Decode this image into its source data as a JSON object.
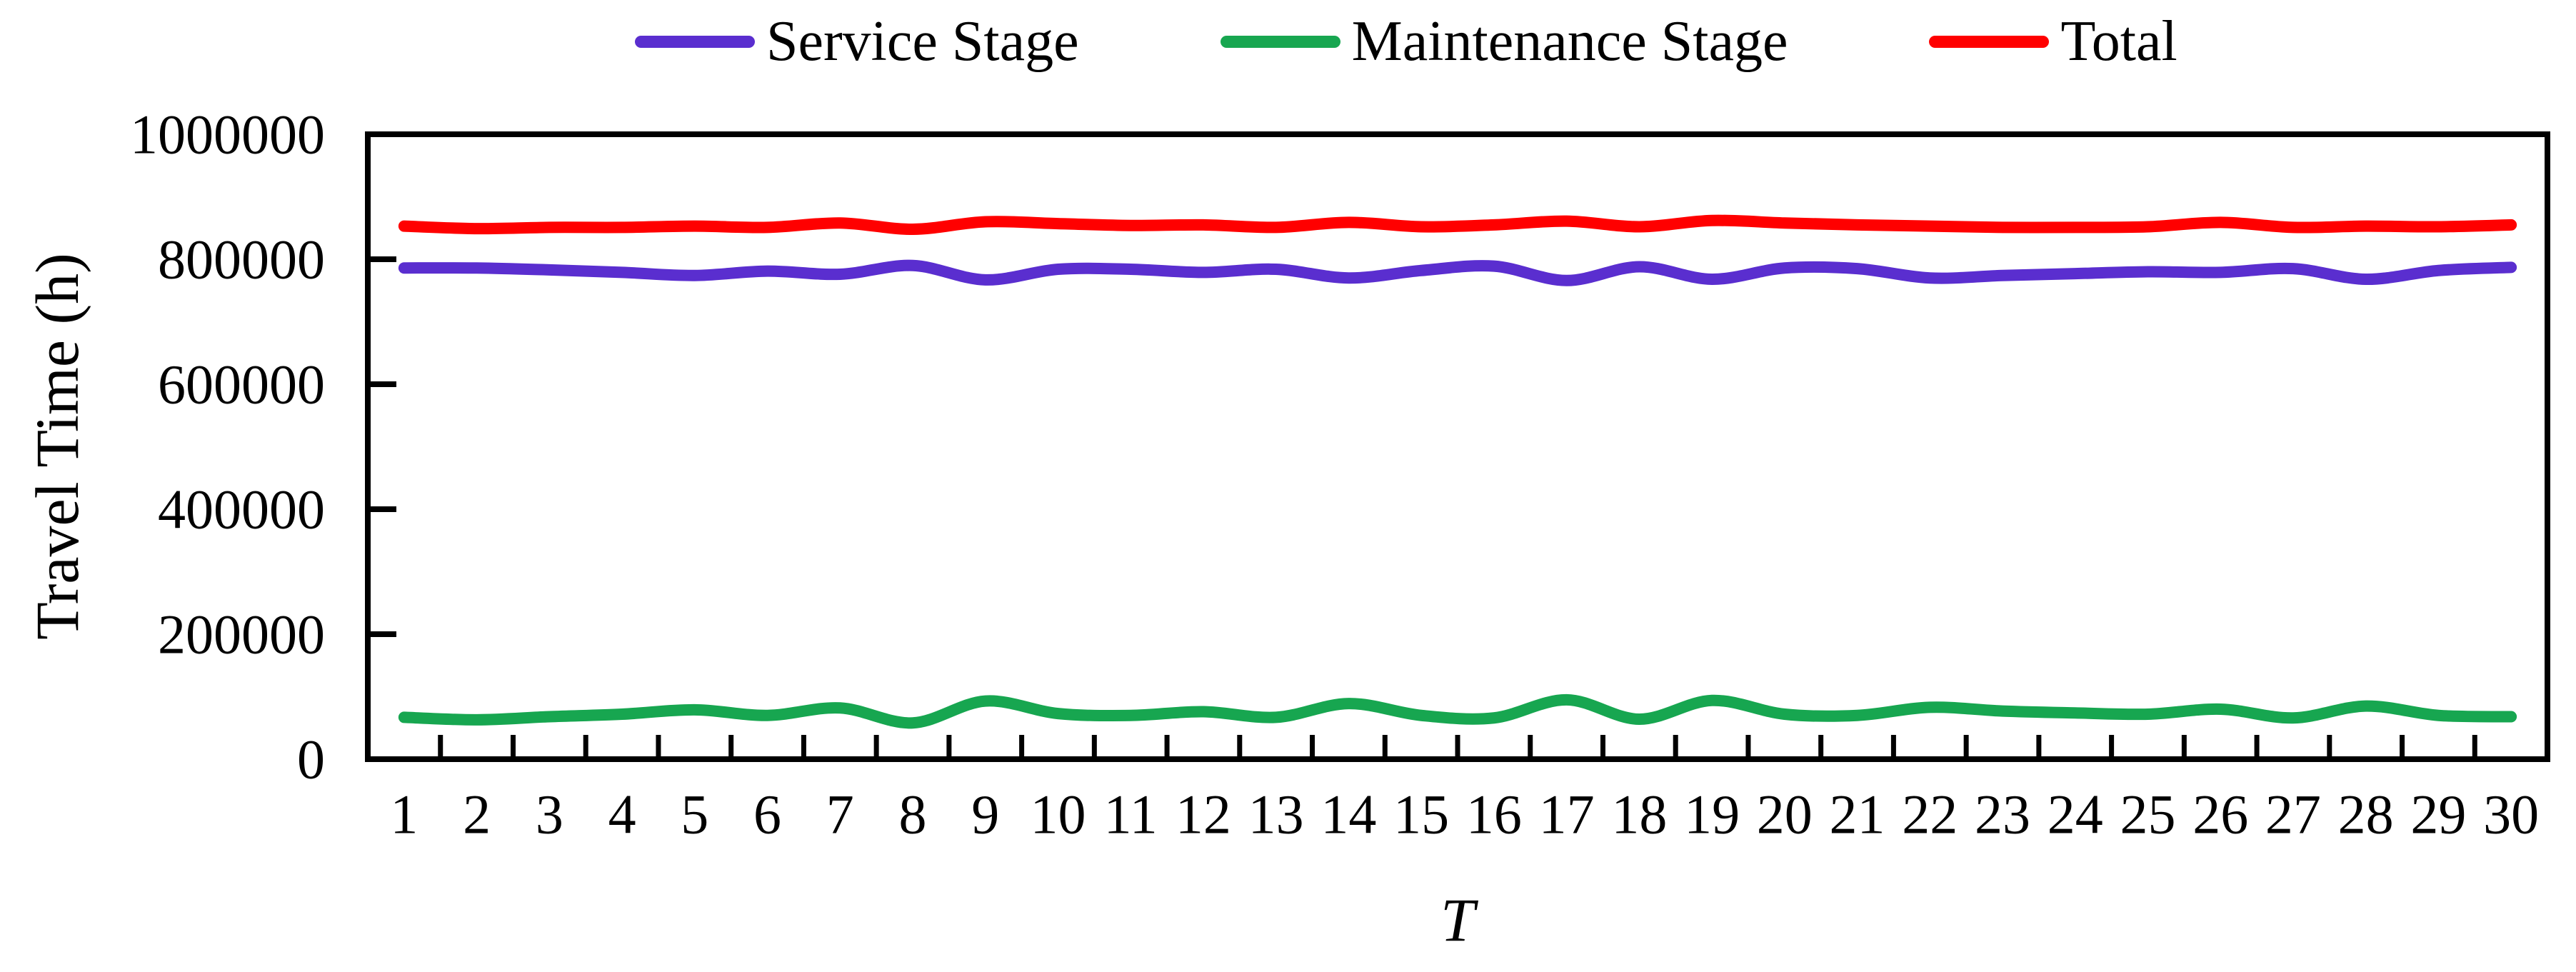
{
  "figure": {
    "background": "#ffffff",
    "text_color": "#000000",
    "y_axis": {
      "title": "Travel Time (h)",
      "tick_labels": [
        "0",
        "200000",
        "400000",
        "600000",
        "800000",
        "1000000"
      ]
    },
    "x_axis": {
      "title": "T",
      "tick_labels": [
        "1",
        "2",
        "3",
        "4",
        "5",
        "6",
        "7",
        "8",
        "9",
        "10",
        "11",
        "12",
        "13",
        "14",
        "15",
        "16",
        "17",
        "18",
        "19",
        "20",
        "21",
        "22",
        "23",
        "24",
        "25",
        "26",
        "27",
        "28",
        "29",
        "30"
      ]
    }
  },
  "legend": {
    "items": [
      {
        "label": "Service Stage",
        "color": "#5A2ECF"
      },
      {
        "label": "Maintenance Stage",
        "color": "#17A650"
      },
      {
        "label": "Total",
        "color": "#FF0000"
      }
    ]
  },
  "chart_data": {
    "type": "line",
    "title": "",
    "xlabel": "T",
    "ylabel": "Travel Time (h)",
    "x": [
      1,
      2,
      3,
      4,
      5,
      6,
      7,
      8,
      9,
      10,
      11,
      12,
      13,
      14,
      15,
      16,
      17,
      18,
      19,
      20,
      21,
      22,
      23,
      24,
      25,
      26,
      27,
      28,
      29,
      30
    ],
    "series": [
      {
        "name": "Service Stage",
        "color": "#5A2ECF",
        "values": [
          786000,
          786000,
          783000,
          779000,
          774000,
          781000,
          776000,
          790000,
          767000,
          784000,
          784000,
          779000,
          784000,
          770000,
          782000,
          789000,
          766000,
          788000,
          768000,
          786000,
          785000,
          770000,
          774000,
          777000,
          780000,
          779000,
          785000,
          768000,
          782000,
          787000
        ]
      },
      {
        "name": "Maintenance Stage",
        "color": "#17A650",
        "values": [
          67000,
          63000,
          68000,
          72000,
          79000,
          70000,
          82000,
          58000,
          93000,
          73000,
          70000,
          76000,
          67000,
          89000,
          70000,
          66000,
          95000,
          64000,
          94000,
          72000,
          70000,
          83000,
          77000,
          74000,
          72000,
          80000,
          66000,
          85000,
          70000,
          68000
        ]
      },
      {
        "name": "Total",
        "color": "#FF0000",
        "values": [
          853000,
          849000,
          851000,
          851000,
          853000,
          851000,
          858000,
          848000,
          860000,
          857000,
          854000,
          855000,
          851000,
          859000,
          852000,
          855000,
          861000,
          852000,
          862000,
          858000,
          855000,
          853000,
          851000,
          851000,
          852000,
          859000,
          851000,
          853000,
          852000,
          855000
        ]
      }
    ],
    "ylim": [
      0,
      1000000
    ],
    "y_ticks": [
      0,
      200000,
      400000,
      600000,
      800000,
      1000000
    ],
    "grid": false,
    "legend_position": "top",
    "smooth": true,
    "line_width": 16
  }
}
